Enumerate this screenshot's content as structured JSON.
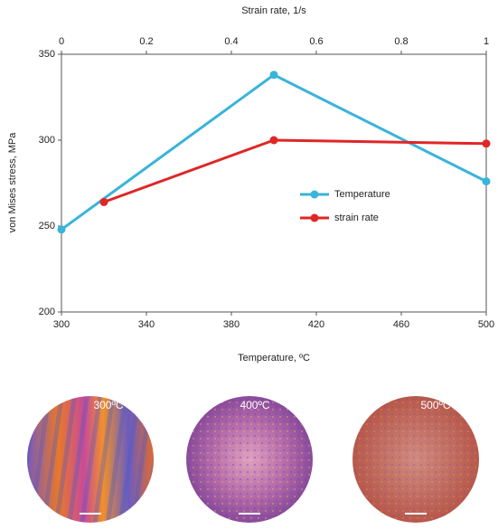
{
  "chart_data": {
    "type": "line",
    "x_label": "Temperature, ºC",
    "x2_label": "Strain rate, 1/s",
    "y_label": "von Mises stress, MPa",
    "xlim": [
      300,
      500
    ],
    "xticks": [
      300,
      340,
      380,
      420,
      460,
      500
    ],
    "x2lim": [
      0,
      1
    ],
    "x2ticks": [
      0,
      0.2,
      0.4,
      0.6,
      0.8,
      1
    ],
    "ylim": [
      200,
      350
    ],
    "yticks": [
      200,
      250,
      300,
      350
    ],
    "legend": "right",
    "series": [
      {
        "name": "Temperature",
        "color": "#3ab4d8",
        "x": [
          300,
          400,
          500
        ],
        "values": [
          248,
          338,
          276
        ]
      },
      {
        "name": "strain rate",
        "color": "#e02626",
        "axis": "x2",
        "x": [
          0.1,
          0.5,
          1
        ],
        "values": [
          264,
          300,
          298
        ]
      }
    ]
  },
  "micrographs": [
    {
      "label": "300ºC"
    },
    {
      "label": "400ºC"
    },
    {
      "label": "500ºC"
    }
  ]
}
